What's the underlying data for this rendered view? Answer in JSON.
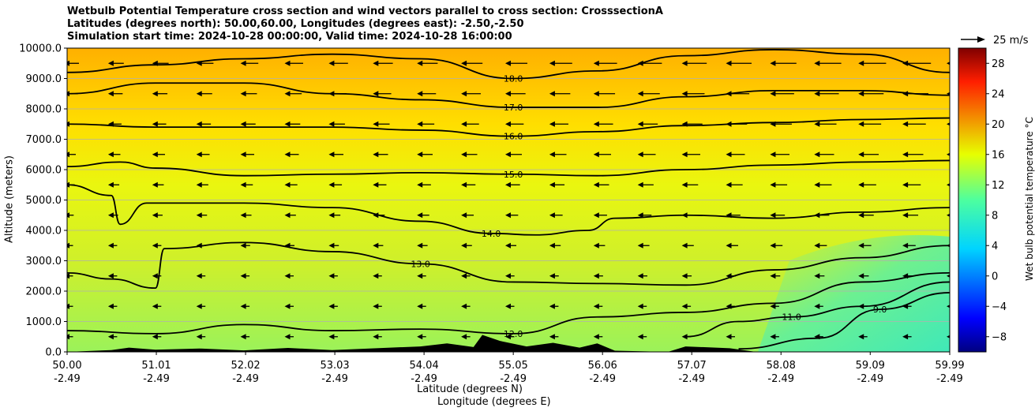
{
  "chart_data": {
    "type": "heatmap",
    "title_lines": [
      "Wetbulb Potential Temperature cross section and wind vectors parallel to cross section: CrosssectionA",
      "Latitudes (degrees north): 50.00,60.00, Longitudes (degrees east): -2.50,-2.50",
      "Simulation start time: 2024-10-28 00:00:00, Valid time: 2024-10-28 16:00:00"
    ],
    "ylabel": "Altitude (meters)",
    "xlabel_line1": "Latitude (degrees N)",
    "xlabel_line2": "Longitude (degrees E)",
    "xlim": [
      50.0,
      59.99
    ],
    "ylim": [
      0,
      10000
    ],
    "x_ticks": [
      {
        "lat": "50.00",
        "lon": "-2.49",
        "value": 50.0
      },
      {
        "lat": "51.01",
        "lon": "-2.49",
        "value": 51.01
      },
      {
        "lat": "52.02",
        "lon": "-2.49",
        "value": 52.02
      },
      {
        "lat": "53.03",
        "lon": "-2.49",
        "value": 53.03
      },
      {
        "lat": "54.04",
        "lon": "-2.49",
        "value": 54.04
      },
      {
        "lat": "55.05",
        "lon": "-2.49",
        "value": 55.05
      },
      {
        "lat": "56.06",
        "lon": "-2.49",
        "value": 56.06
      },
      {
        "lat": "57.07",
        "lon": "-2.49",
        "value": 57.07
      },
      {
        "lat": "58.08",
        "lon": "-2.49",
        "value": 58.08
      },
      {
        "lat": "59.09",
        "lon": "-2.49",
        "value": 59.09
      },
      {
        "lat": "59.99",
        "lon": "-2.49",
        "value": 59.99
      }
    ],
    "y_ticks": [
      {
        "label": "0.0",
        "value": 0
      },
      {
        "label": "1000.0",
        "value": 1000
      },
      {
        "label": "2000.0",
        "value": 2000
      },
      {
        "label": "3000.0",
        "value": 3000
      },
      {
        "label": "4000.0",
        "value": 4000
      },
      {
        "label": "5000.0",
        "value": 5000
      },
      {
        "label": "6000.0",
        "value": 6000
      },
      {
        "label": "7000.0",
        "value": 7000
      },
      {
        "label": "8000.0",
        "value": 8000
      },
      {
        "label": "9000.0",
        "value": 9000
      },
      {
        "label": "10000.0",
        "value": 10000
      }
    ],
    "grid": "horizontal",
    "colorbar": {
      "label": "Wet bulb potential temperature $^\\circ$C",
      "range": [
        -10,
        30
      ],
      "ticks": [
        {
          "label": "−8",
          "value": -8
        },
        {
          "label": "−4",
          "value": -4
        },
        {
          "label": "0",
          "value": 0
        },
        {
          "label": "4",
          "value": 4
        },
        {
          "label": "8",
          "value": 8
        },
        {
          "label": "12",
          "value": 12
        },
        {
          "label": "16",
          "value": 16
        },
        {
          "label": "20",
          "value": 20
        },
        {
          "label": "24",
          "value": 24
        },
        {
          "label": "28",
          "value": 28
        }
      ],
      "colormap": "jet"
    },
    "quiver_key": {
      "label": "25 m/s",
      "speed": 25
    },
    "contours": [
      {
        "level": 18,
        "label": "18.0",
        "points": [
          [
            50.0,
            9200
          ],
          [
            51.0,
            9450
          ],
          [
            52.0,
            9650
          ],
          [
            53.0,
            9800
          ],
          [
            54.0,
            9650
          ],
          [
            55.05,
            9000
          ],
          [
            56.0,
            9250
          ],
          [
            57.0,
            9750
          ],
          [
            58.0,
            9950
          ],
          [
            59.0,
            9800
          ],
          [
            59.99,
            9200
          ]
        ]
      },
      {
        "level": 17,
        "label": "17.0",
        "points": [
          [
            50.0,
            8500
          ],
          [
            51.0,
            8850
          ],
          [
            52.0,
            8850
          ],
          [
            53.0,
            8500
          ],
          [
            54.0,
            8300
          ],
          [
            55.05,
            8050
          ],
          [
            56.0,
            8050
          ],
          [
            57.0,
            8400
          ],
          [
            58.0,
            8600
          ],
          [
            59.0,
            8600
          ],
          [
            59.99,
            8450
          ]
        ]
      },
      {
        "level": 16,
        "label": "16.0",
        "points": [
          [
            50.0,
            7500
          ],
          [
            51.0,
            7400
          ],
          [
            52.0,
            7400
          ],
          [
            53.0,
            7400
          ],
          [
            54.0,
            7300
          ],
          [
            55.05,
            7100
          ],
          [
            56.0,
            7250
          ],
          [
            57.0,
            7450
          ],
          [
            58.0,
            7550
          ],
          [
            59.0,
            7650
          ],
          [
            59.99,
            7700
          ]
        ]
      },
      {
        "level": 15,
        "label": "15.0",
        "points": [
          [
            50.0,
            6100
          ],
          [
            50.6,
            6250
          ],
          [
            51.0,
            6050
          ],
          [
            52.0,
            5800
          ],
          [
            53.0,
            5850
          ],
          [
            54.0,
            5900
          ],
          [
            55.05,
            5850
          ],
          [
            56.0,
            5800
          ],
          [
            57.0,
            6000
          ],
          [
            58.0,
            6150
          ],
          [
            59.0,
            6250
          ],
          [
            59.99,
            6300
          ]
        ]
      },
      {
        "level": 14,
        "label": "14.0",
        "points": [
          [
            50.0,
            5500
          ],
          [
            50.5,
            5150
          ],
          [
            50.6,
            4200
          ],
          [
            50.9,
            4900
          ],
          [
            52.0,
            4900
          ],
          [
            53.0,
            4750
          ],
          [
            54.0,
            4300
          ],
          [
            54.8,
            3900
          ],
          [
            55.3,
            3850
          ],
          [
            55.9,
            4000
          ],
          [
            56.2,
            4400
          ],
          [
            57.0,
            4500
          ],
          [
            58.0,
            4400
          ],
          [
            59.0,
            4600
          ],
          [
            59.99,
            4750
          ]
        ]
      },
      {
        "level": 13,
        "label": "13.0",
        "points": [
          [
            50.0,
            2600
          ],
          [
            50.5,
            2400
          ],
          [
            51.0,
            2100
          ],
          [
            51.1,
            3400
          ],
          [
            52.0,
            3600
          ],
          [
            53.0,
            3300
          ],
          [
            54.0,
            2900
          ],
          [
            55.05,
            2300
          ],
          [
            56.0,
            2250
          ],
          [
            57.0,
            2200
          ],
          [
            58.0,
            2700
          ],
          [
            59.0,
            3100
          ],
          [
            59.99,
            3500
          ]
        ]
      },
      {
        "level": 12,
        "label": "12.0",
        "points": [
          [
            50.0,
            700
          ],
          [
            51.0,
            600
          ],
          [
            52.0,
            900
          ],
          [
            53.0,
            700
          ],
          [
            54.0,
            750
          ],
          [
            55.05,
            600
          ],
          [
            56.0,
            1150
          ],
          [
            57.0,
            1300
          ],
          [
            58.0,
            1600
          ],
          [
            59.0,
            2300
          ],
          [
            59.99,
            2600
          ]
        ]
      },
      {
        "level": 11,
        "label": "11.0",
        "points": [
          [
            57.0,
            500
          ],
          [
            57.6,
            1000
          ],
          [
            58.2,
            1150
          ],
          [
            59.0,
            1500
          ],
          [
            59.99,
            2300
          ]
        ]
      },
      {
        "level": 9,
        "label": "9.0",
        "points": [
          [
            57.6,
            100
          ],
          [
            58.5,
            450
          ],
          [
            59.2,
            1400
          ],
          [
            59.99,
            1950
          ]
        ]
      }
    ]
  }
}
